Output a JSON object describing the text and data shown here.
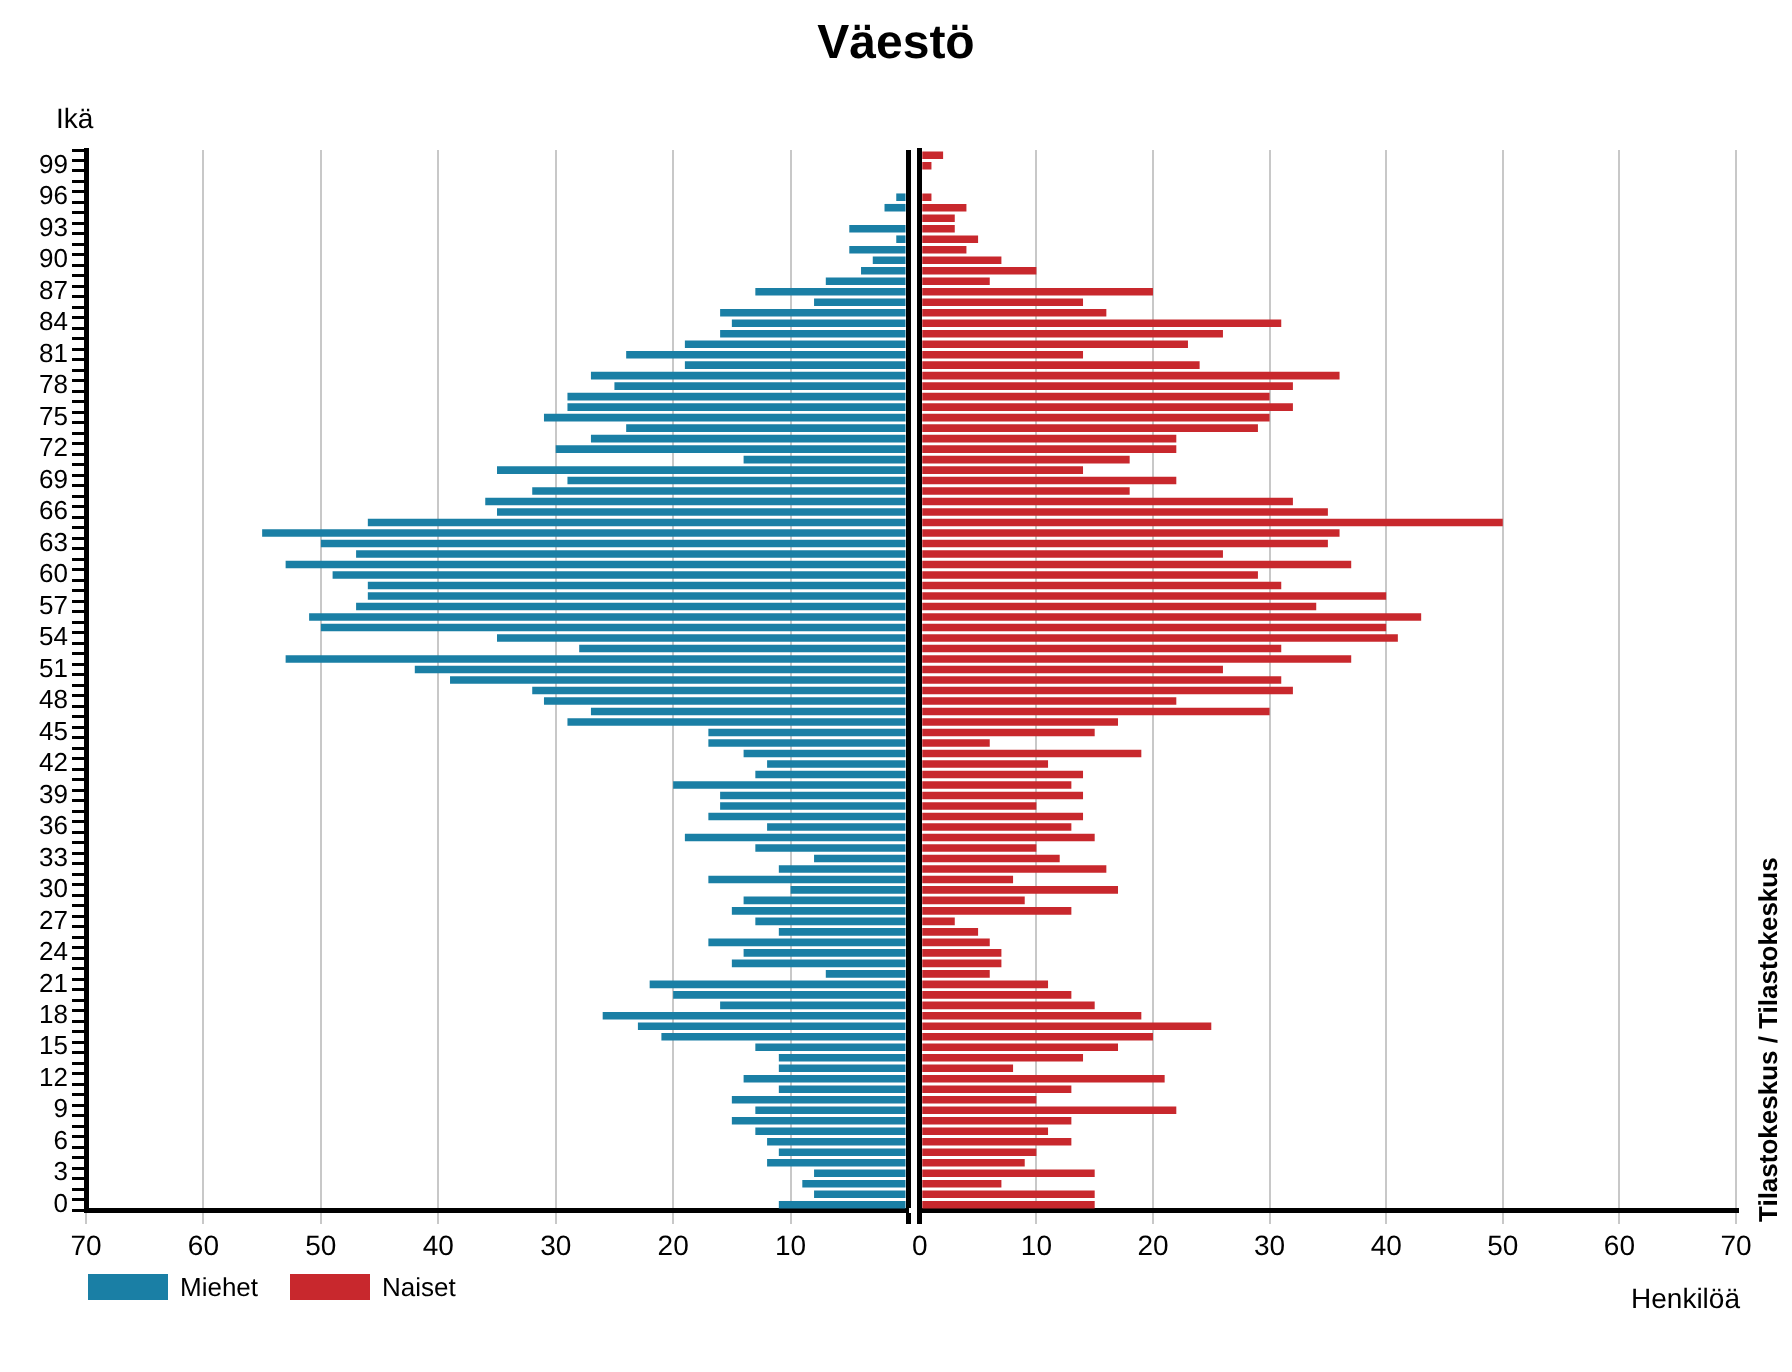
{
  "chart_data": [
    {
      "type": "bar",
      "orientation": "horizontal",
      "title": "Väestö",
      "ylabel": "Ikä",
      "categories": [
        null,
        "99",
        null,
        null,
        "96",
        null,
        null,
        "93",
        null,
        null,
        "90",
        null,
        null,
        "87",
        null,
        null,
        "84",
        null,
        null,
        "81",
        null,
        null,
        "78",
        null,
        null,
        "75",
        null,
        null,
        "72",
        null,
        null,
        "69",
        null,
        null,
        "66",
        null,
        null,
        "63",
        null,
        null,
        "60",
        null,
        null,
        "57",
        null,
        null,
        "54",
        null,
        null,
        "51",
        null,
        null,
        "48",
        null,
        null,
        "45",
        null,
        null,
        "42",
        null,
        null,
        "39",
        null,
        null,
        "36",
        null,
        null,
        "33",
        null,
        null,
        "30",
        null,
        null,
        "27",
        null,
        null,
        "24",
        null,
        null,
        "21",
        null,
        null,
        "18",
        null,
        null,
        "15",
        null,
        null,
        "12",
        null,
        null,
        "9",
        null,
        null,
        "6",
        null,
        null,
        "3",
        null,
        null,
        "0"
      ],
      "series": [
        {
          "name": "Miehet",
          "color": "#1a7fa5",
          "values": [
            0,
            0,
            0,
            0,
            1,
            2,
            0,
            5,
            1,
            5,
            3,
            4,
            7,
            13,
            8,
            16,
            15,
            16,
            19,
            24,
            19,
            27,
            25,
            29,
            29,
            31,
            24,
            27,
            30,
            14,
            35,
            29,
            32,
            36,
            35,
            46,
            55,
            50,
            47,
            53,
            49,
            46,
            46,
            47,
            51,
            50,
            35,
            28,
            53,
            42,
            39,
            32,
            31,
            27,
            29,
            17,
            17,
            14,
            12,
            13,
            20,
            16,
            16,
            17,
            12,
            19,
            13,
            8,
            11,
            17,
            10,
            14,
            15,
            13,
            11,
            17,
            14,
            15,
            7,
            22,
            20,
            16,
            26,
            23,
            21,
            13,
            11,
            11,
            14,
            11,
            15,
            13,
            15,
            13,
            12,
            11,
            12,
            8,
            9,
            8,
            11
          ]
        }
      ],
      "xlim": [
        70,
        0
      ],
      "xticks": [
        70,
        60,
        50,
        40,
        30,
        20,
        10,
        {
          "value": 0,
          "label": null
        }
      ],
      "grid": "x",
      "legend": "bottom left"
    },
    {
      "type": "bar",
      "orientation": "horizontal",
      "xlabel": "Henkilöä",
      "annotations": [
        "Tilastokeskus / Tilastokeskus"
      ],
      "categories": [
        null,
        "99",
        null,
        null,
        "96",
        null,
        null,
        "93",
        null,
        null,
        "90",
        null,
        null,
        "87",
        null,
        null,
        "84",
        null,
        null,
        "81",
        null,
        null,
        "78",
        null,
        null,
        "75",
        null,
        null,
        "72",
        null,
        null,
        "69",
        null,
        null,
        "66",
        null,
        null,
        "63",
        null,
        null,
        "60",
        null,
        null,
        "57",
        null,
        null,
        "54",
        null,
        null,
        "51",
        null,
        null,
        "48",
        null,
        null,
        "45",
        null,
        null,
        "42",
        null,
        null,
        "39",
        null,
        null,
        "36",
        null,
        null,
        "33",
        null,
        null,
        "30",
        null,
        null,
        "27",
        null,
        null,
        "24",
        null,
        null,
        "21",
        null,
        null,
        "18",
        null,
        null,
        "15",
        null,
        null,
        "12",
        null,
        null,
        "9",
        null,
        null,
        "6",
        null,
        null,
        "3",
        null,
        null,
        "0"
      ],
      "series": [
        {
          "name": "Naiset",
          "color": "#c8282d",
          "values": [
            2,
            1,
            0,
            0,
            1,
            4,
            3,
            3,
            5,
            4,
            7,
            10,
            6,
            20,
            14,
            16,
            31,
            26,
            23,
            14,
            24,
            36,
            32,
            30,
            32,
            30,
            29,
            22,
            22,
            18,
            14,
            22,
            18,
            32,
            35,
            50,
            36,
            35,
            26,
            37,
            29,
            31,
            40,
            34,
            43,
            40,
            41,
            31,
            37,
            26,
            31,
            32,
            22,
            30,
            17,
            15,
            6,
            19,
            11,
            14,
            13,
            14,
            10,
            14,
            13,
            15,
            10,
            12,
            16,
            8,
            17,
            9,
            13,
            3,
            5,
            6,
            7,
            7,
            6,
            11,
            13,
            15,
            19,
            25,
            20,
            17,
            14,
            8,
            21,
            13,
            10,
            22,
            13,
            11,
            13,
            10,
            9,
            15,
            7,
            15,
            15
          ]
        }
      ],
      "xlim": [
        0,
        70
      ],
      "xticks": [
        0,
        10,
        20,
        30,
        40,
        50,
        60,
        70
      ],
      "grid": "x",
      "legend": "bottom left",
      "tick_labels": "x"
    }
  ]
}
